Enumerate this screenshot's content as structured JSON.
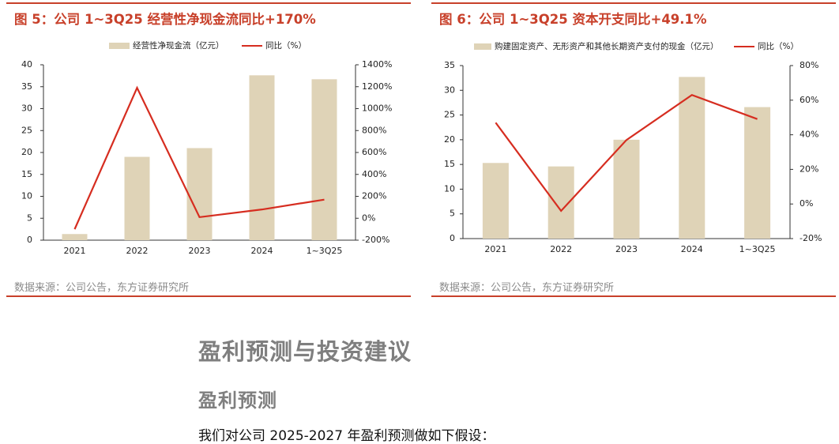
{
  "chart_data": [
    {
      "type": "bar",
      "title": "图 5：公司 1~3Q25 经营性净现金流同比+170%",
      "categories": [
        "2021",
        "2022",
        "2023",
        "2024",
        "1~3Q25"
      ],
      "series": [
        {
          "name": "经营性净现金流（亿元）",
          "type": "bar",
          "axis": "left",
          "values": [
            1.4,
            19.0,
            21.0,
            37.6,
            36.7
          ],
          "color": "#dfd3b7"
        },
        {
          "name": "同比（%）",
          "type": "line",
          "axis": "right",
          "values": [
            -100,
            1190,
            10,
            80,
            170
          ],
          "color": "#d62d20"
        }
      ],
      "y_left": {
        "range": [
          0,
          40
        ],
        "ticks": [
          "0",
          "5",
          "10",
          "15",
          "20",
          "25",
          "30",
          "35",
          "40"
        ]
      },
      "y_right": {
        "range": [
          -200,
          1400
        ],
        "ticks": [
          "-200%",
          "0%",
          "200%",
          "400%",
          "600%",
          "800%",
          "1000%",
          "1200%",
          "1400%"
        ]
      },
      "legend_position": "top-center",
      "grid": false,
      "source": "数据来源：公司公告，东方证券研究所"
    },
    {
      "type": "bar",
      "title": "图 6：公司 1~3Q25 资本开支同比+49.1%",
      "categories": [
        "2021",
        "2022",
        "2023",
        "2024",
        "1~3Q25"
      ],
      "series": [
        {
          "name": "购建固定资产、无形资产和其他长期资产支付的现金（亿元）",
          "type": "bar",
          "axis": "left",
          "values": [
            15.3,
            14.6,
            20.0,
            32.7,
            26.6
          ],
          "color": "#dfd3b7"
        },
        {
          "name": "同比（%）",
          "type": "line",
          "axis": "right",
          "values": [
            47,
            -4,
            37,
            63,
            49.1
          ],
          "color": "#d62d20"
        }
      ],
      "y_left": {
        "range": [
          0,
          35
        ],
        "ticks": [
          "0",
          "5",
          "10",
          "15",
          "20",
          "25",
          "30",
          "35"
        ]
      },
      "y_right": {
        "range": [
          -20,
          80
        ],
        "ticks": [
          "-20%",
          "0%",
          "20%",
          "40%",
          "60%",
          "80%"
        ]
      },
      "legend_position": "top-center",
      "grid": false,
      "source": "数据来源：公司公告，东方证券研究所"
    }
  ],
  "text": {
    "heading1": "盈利预测与投资建议",
    "heading2": "盈利预测",
    "paragraph": "我们对公司 2025-2027 年盈利预测做如下假设："
  }
}
